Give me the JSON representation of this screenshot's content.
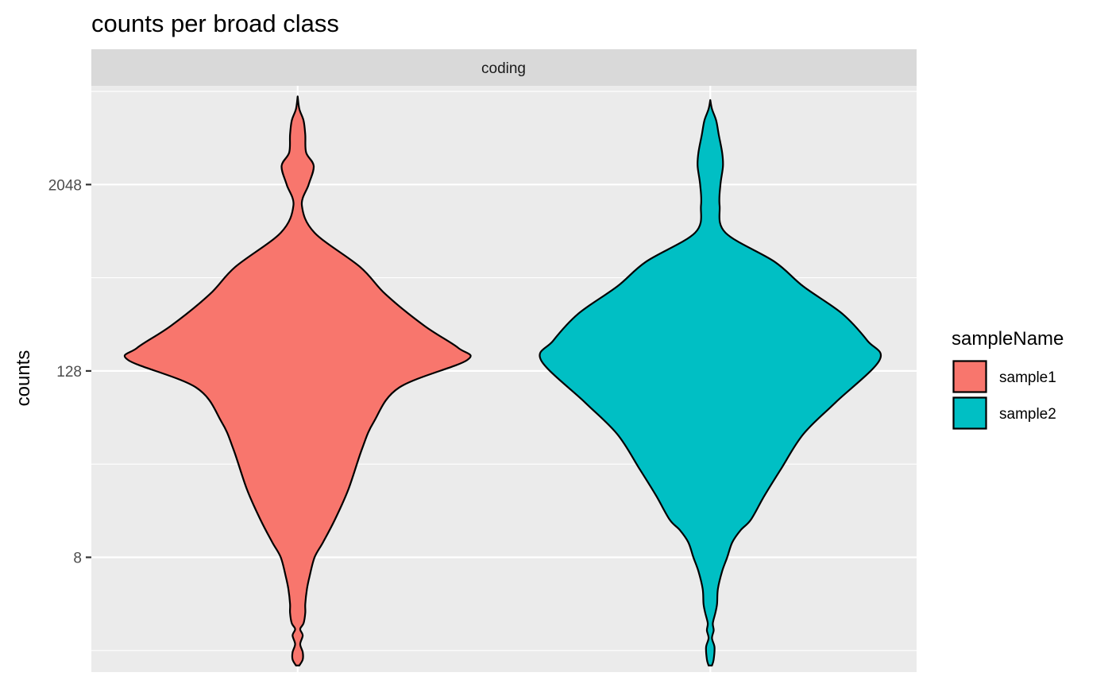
{
  "chart_data": {
    "type": "violin",
    "title": "counts per broad class",
    "facet_label": "coding",
    "xlabel": "",
    "ylabel": "counts",
    "y_scale": "log2",
    "y_ticks": [
      8,
      128,
      2048
    ],
    "y_tick_labels": [
      "8",
      "128",
      "2048"
    ],
    "ylim": [
      1.45,
      8900
    ],
    "grid": true,
    "legend": {
      "title": "sampleName",
      "position": "right"
    },
    "series": [
      {
        "name": "sample1",
        "color": "#F8766D",
        "shape": [
          [
            1.6,
            0.01
          ],
          [
            1.75,
            0.03
          ],
          [
            1.95,
            0.03
          ],
          [
            2.2,
            0.015
          ],
          [
            2.5,
            0.03
          ],
          [
            2.75,
            0.015
          ],
          [
            3.0,
            0.035
          ],
          [
            3.5,
            0.045
          ],
          [
            4.0,
            0.045
          ],
          [
            5.0,
            0.055
          ],
          [
            6.0,
            0.07
          ],
          [
            8.0,
            0.1
          ],
          [
            10.0,
            0.15
          ],
          [
            14.0,
            0.22
          ],
          [
            22.0,
            0.3
          ],
          [
            40.0,
            0.38
          ],
          [
            60.0,
            0.45
          ],
          [
            100.0,
            0.6
          ],
          [
            150.0,
            1.0
          ],
          [
            180.0,
            0.95
          ],
          [
            250.0,
            0.75
          ],
          [
            400.0,
            0.52
          ],
          [
            600.0,
            0.37
          ],
          [
            1000.0,
            0.1
          ],
          [
            1500.0,
            0.025
          ],
          [
            2048.0,
            0.065
          ],
          [
            2700.0,
            0.095
          ],
          [
            3300.0,
            0.05
          ],
          [
            4300.0,
            0.045
          ],
          [
            5300.0,
            0.035
          ],
          [
            6300.0,
            0.01
          ],
          [
            7600.0,
            0.0
          ]
        ]
      },
      {
        "name": "sample2",
        "color": "#00BFC4",
        "shape": [
          [
            1.6,
            0.01
          ],
          [
            1.75,
            0.02
          ],
          [
            2.1,
            0.025
          ],
          [
            2.4,
            0.01
          ],
          [
            2.7,
            0.02
          ],
          [
            3.0,
            0.015
          ],
          [
            3.5,
            0.03
          ],
          [
            4.0,
            0.04
          ],
          [
            5.0,
            0.045
          ],
          [
            6.5,
            0.07
          ],
          [
            8.0,
            0.1
          ],
          [
            10.0,
            0.13
          ],
          [
            12.0,
            0.18
          ],
          [
            14.0,
            0.24
          ],
          [
            20.0,
            0.32
          ],
          [
            30.0,
            0.42
          ],
          [
            50.0,
            0.55
          ],
          [
            80.0,
            0.74
          ],
          [
            150.0,
            1.0
          ],
          [
            200.0,
            0.93
          ],
          [
            300.0,
            0.78
          ],
          [
            450.0,
            0.55
          ],
          [
            650.0,
            0.38
          ],
          [
            1000.0,
            0.09
          ],
          [
            1500.0,
            0.055
          ],
          [
            2048.0,
            0.06
          ],
          [
            2700.0,
            0.075
          ],
          [
            3300.0,
            0.07
          ],
          [
            4300.0,
            0.05
          ],
          [
            5300.0,
            0.035
          ],
          [
            6300.0,
            0.01
          ],
          [
            7200.0,
            0.0
          ]
        ]
      }
    ]
  }
}
